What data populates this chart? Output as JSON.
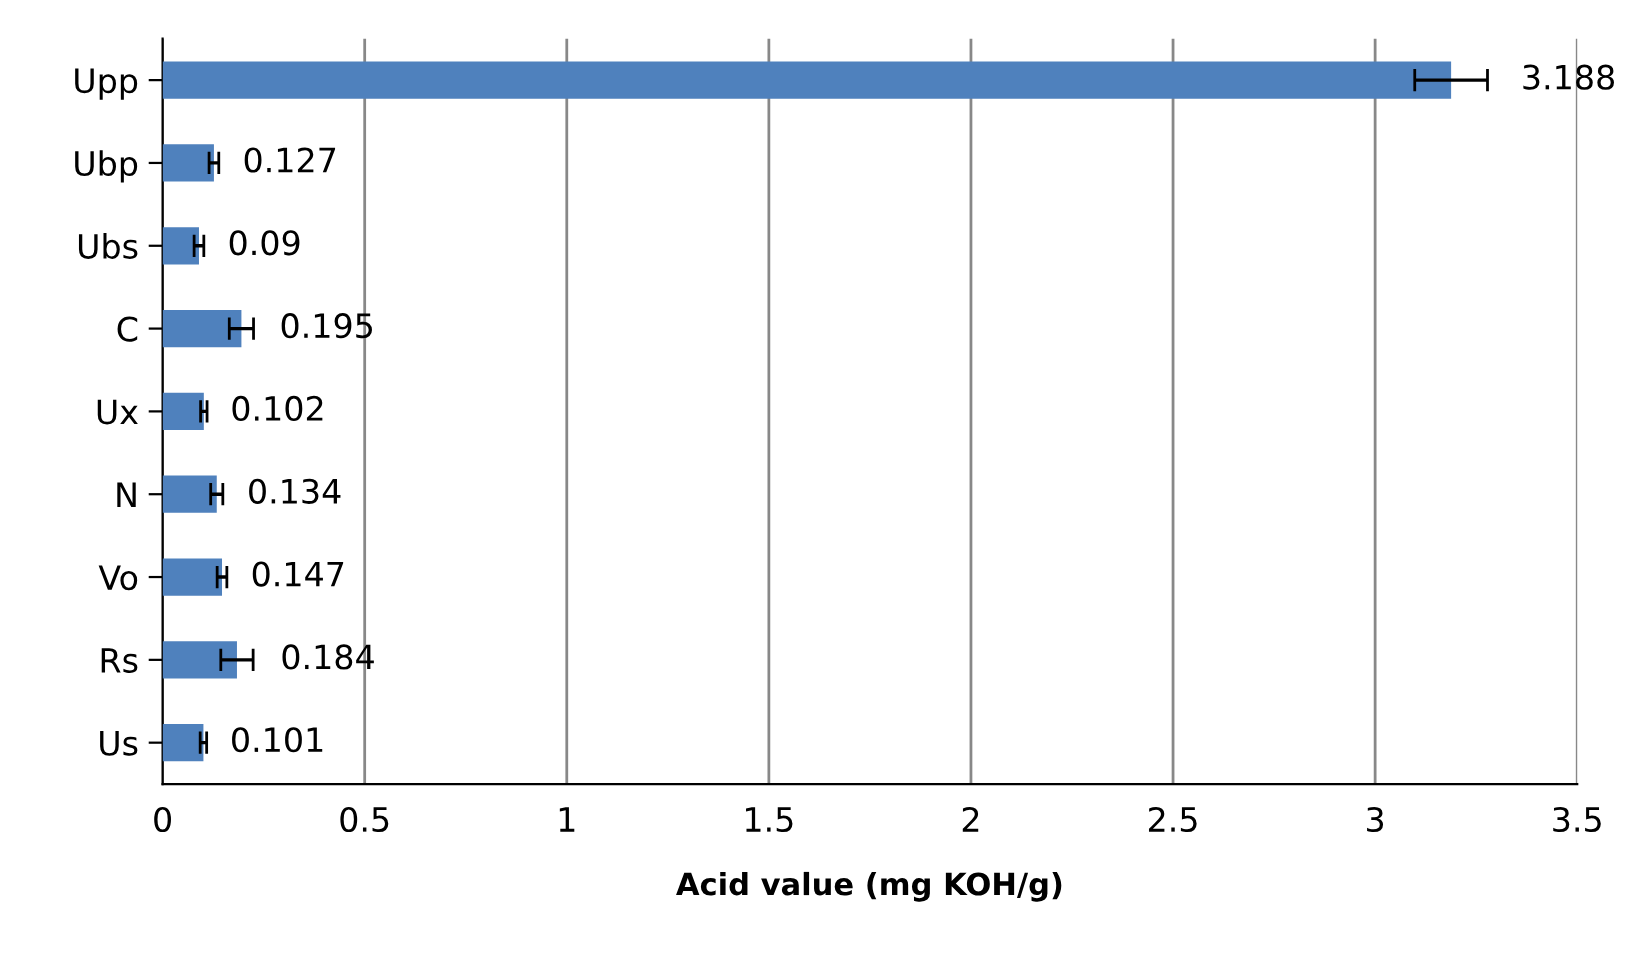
{
  "chart_data": {
    "type": "bar",
    "orientation": "horizontal",
    "xlabel": "Acid value (mg KOH/g)",
    "categories": [
      "Upp",
      "Ubp",
      "Ubs",
      "C",
      "Ux",
      "N",
      "Vo",
      "Rs",
      "Us"
    ],
    "values": [
      3.188,
      0.127,
      0.09,
      0.195,
      0.102,
      0.134,
      0.147,
      0.184,
      0.101
    ],
    "errors": [
      0.09,
      0.012,
      0.012,
      0.03,
      0.008,
      0.015,
      0.012,
      0.04,
      0.008
    ],
    "color": "#4f81bd",
    "data_labels": true,
    "xlim": [
      0,
      3.5
    ],
    "xticks": [
      0,
      0.5,
      1,
      1.5,
      2,
      2.5,
      3,
      3.5
    ],
    "grid": "x"
  }
}
